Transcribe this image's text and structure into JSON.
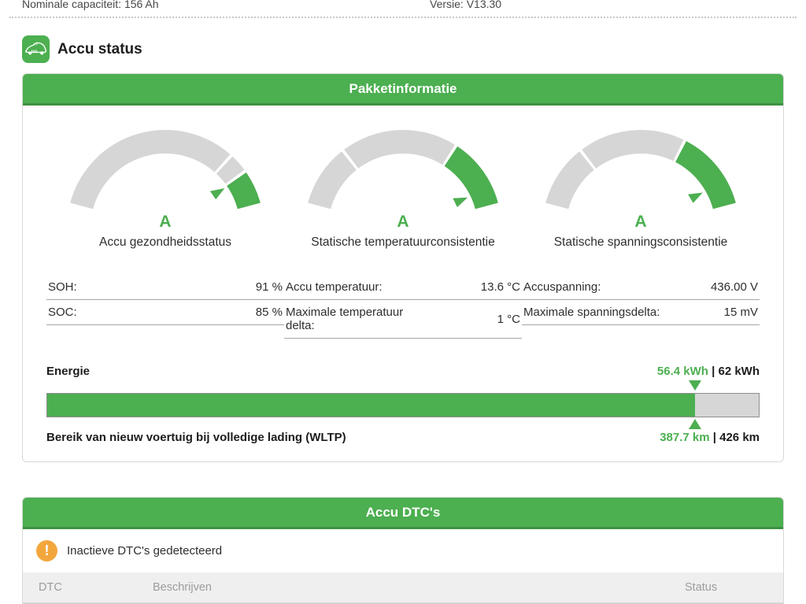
{
  "header": {
    "nominal_capacity": "Nominale capaciteit: 156 Ah",
    "version": "Versie: V13.30",
    "title": "Accu status"
  },
  "colors": {
    "green": "#4caf50",
    "green_dark": "#3e9142",
    "gauge_gray": "#d6d6d6",
    "amber": "#f2a73d"
  },
  "pack_panel": {
    "title": "Pakketinformatie",
    "gauges": [
      {
        "grade": "A",
        "label": "Accu gezondheidsstatus",
        "segments": [
          {
            "from": 0.0,
            "to": 0.775,
            "color": "gray"
          },
          {
            "from": 0.787,
            "to": 0.857,
            "color": "gray"
          },
          {
            "from": 0.869,
            "to": 1.0,
            "color": "green"
          }
        ],
        "pointer": 0.873,
        "rows": [
          {
            "label": "SOH:",
            "value": "91 %"
          },
          {
            "label": "SOC:",
            "value": "85 %"
          }
        ]
      },
      {
        "grade": "A",
        "label": "Statische temperatuurconsistentie",
        "segments": [
          {
            "from": 0.0,
            "to": 0.243,
            "color": "gray"
          },
          {
            "from": 0.255,
            "to": 0.712,
            "color": "gray"
          },
          {
            "from": 0.724,
            "to": 1.0,
            "color": "green"
          }
        ],
        "pointer": 0.93,
        "rows": [
          {
            "label": "Accu temperatuur:",
            "value": "13.6 °C"
          },
          {
            "label": "Maximale temperatuur delta:",
            "value": "1 °C"
          }
        ]
      },
      {
        "grade": "A",
        "label": "Statische spanningsconsistentie",
        "segments": [
          {
            "from": 0.0,
            "to": 0.243,
            "color": "gray"
          },
          {
            "from": 0.255,
            "to": 0.672,
            "color": "gray"
          },
          {
            "from": 0.684,
            "to": 1.0,
            "color": "green"
          }
        ],
        "pointer": 0.9,
        "rows": [
          {
            "label": "Accuspanning:",
            "value": "436.00 V"
          },
          {
            "label": "Maximale spanningsdelta:",
            "value": "15 mV"
          }
        ]
      }
    ],
    "energy": {
      "label": "Energie",
      "current": "56.4 kWh",
      "separator": "|",
      "max": "62 kWh",
      "fraction": 0.91
    },
    "range": {
      "label": "Bereik van nieuw voertuig bij volledige lading (WLTP)",
      "current": "387.7 km",
      "separator": "|",
      "max": "426 km"
    }
  },
  "dtc_panel": {
    "title": "Accu DTC's",
    "notice": "Inactieve DTC's gedetecteerd",
    "columns": [
      "DTC",
      "Beschrijven",
      "Status"
    ],
    "rows": []
  }
}
